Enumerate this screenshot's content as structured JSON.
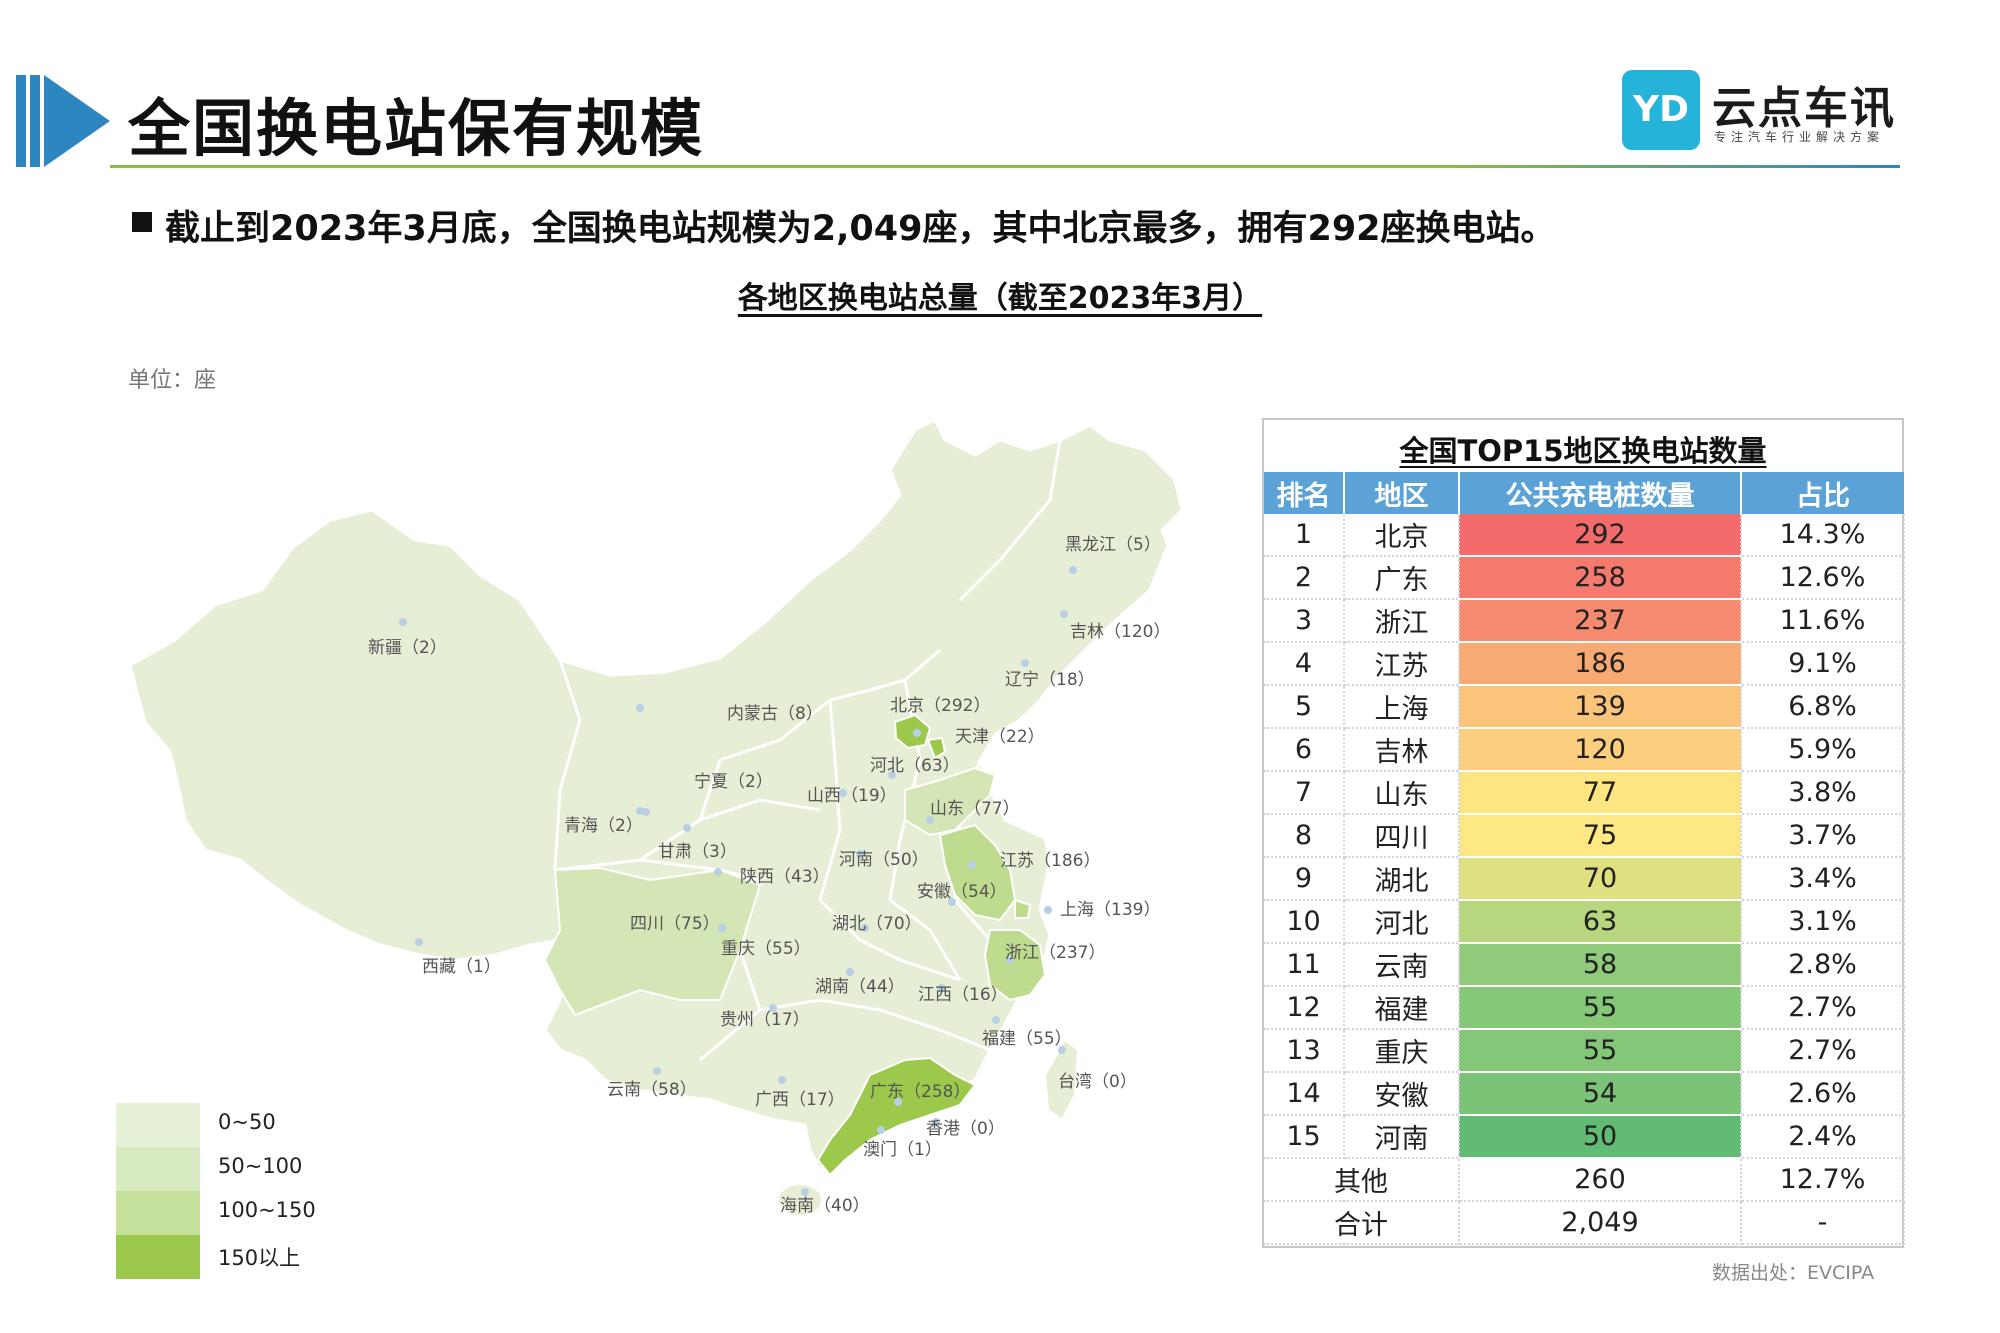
{
  "header": {
    "title": "全国换电站保有规模",
    "brand_logo_text": "YD",
    "brand_name": "云点车讯",
    "brand_slogan": "专注汽车行业解决方案"
  },
  "subtitle": "截止到2023年3月底，全国换电站规模为2,049座，其中北京最多，拥有292座换电站。",
  "chart_title": "各地区换电站总量（截至2023年3月）",
  "unit_label": "单位：座",
  "map": {
    "regions": [
      {
        "name": "黑龙江",
        "value": 5,
        "label": "黑龙江（5）"
      },
      {
        "name": "吉林",
        "value": 120,
        "label": "吉林（120）"
      },
      {
        "name": "辽宁",
        "value": 18,
        "label": "辽宁（18）"
      },
      {
        "name": "新疆",
        "value": 2,
        "label": "新疆（2）"
      },
      {
        "name": "内蒙古",
        "value": 8,
        "label": "内蒙古（8）"
      },
      {
        "name": "北京",
        "value": 292,
        "label": "北京（292）"
      },
      {
        "name": "天津",
        "value": 22,
        "label": "天津（22）"
      },
      {
        "name": "河北",
        "value": 63,
        "label": "河北（63）"
      },
      {
        "name": "宁夏",
        "value": 2,
        "label": "宁夏（2）"
      },
      {
        "name": "山西",
        "value": 19,
        "label": "山西（19）"
      },
      {
        "name": "山东",
        "value": 77,
        "label": "山东（77）"
      },
      {
        "name": "青海",
        "value": 2,
        "label": "青海（2）"
      },
      {
        "name": "甘肃",
        "value": 3,
        "label": "甘肃（3）"
      },
      {
        "name": "河南",
        "value": 50,
        "label": "河南（50）"
      },
      {
        "name": "江苏",
        "value": 186,
        "label": "江苏（186）"
      },
      {
        "name": "陕西",
        "value": 43,
        "label": "陕西（43）"
      },
      {
        "name": "安徽",
        "value": 54,
        "label": "安徽（54）"
      },
      {
        "name": "上海",
        "value": 139,
        "label": "上海（139）"
      },
      {
        "name": "四川",
        "value": 75,
        "label": "四川（75）"
      },
      {
        "name": "湖北",
        "value": 70,
        "label": "湖北（70）"
      },
      {
        "name": "西藏",
        "value": 1,
        "label": "西藏（1）"
      },
      {
        "name": "重庆",
        "value": 55,
        "label": "重庆（55）"
      },
      {
        "name": "浙江",
        "value": 237,
        "label": "浙江（237）"
      },
      {
        "name": "湖南",
        "value": 44,
        "label": "湖南（44）"
      },
      {
        "name": "江西",
        "value": 16,
        "label": "江西（16）"
      },
      {
        "name": "贵州",
        "value": 17,
        "label": "贵州（17）"
      },
      {
        "name": "福建",
        "value": 55,
        "label": "福建（55）"
      },
      {
        "name": "台湾",
        "value": 0,
        "label": "台湾（0）"
      },
      {
        "name": "云南",
        "value": 58,
        "label": "云南（58）"
      },
      {
        "name": "广西",
        "value": 17,
        "label": "广西（17）"
      },
      {
        "name": "广东",
        "value": 258,
        "label": "广东（258）"
      },
      {
        "name": "香港",
        "value": 0,
        "label": "香港（0）"
      },
      {
        "name": "澳门",
        "value": 1,
        "label": "澳门（1）"
      },
      {
        "name": "海南",
        "value": 40,
        "label": "海南（40）"
      }
    ],
    "colors": {
      "land": "#e7eed6",
      "border": "#ffffff",
      "tier_50_100": "#d4e6b5",
      "tier_100_150": "#bfdc8e",
      "tier_150_plus": "#9cc94c"
    }
  },
  "legend": [
    {
      "label": "0~50",
      "color": "#e7f1d7"
    },
    {
      "label": "50~100",
      "color": "#d8eac0"
    },
    {
      "label": "100~150",
      "color": "#c4e09a"
    },
    {
      "label": "150以上",
      "color": "#9cc94c"
    }
  ],
  "table": {
    "title": "全国TOP15地区换电站数量",
    "headers": [
      "排名",
      "地区",
      "公共充电桩数量",
      "占比"
    ],
    "rows": [
      {
        "rank": "1",
        "region": "北京",
        "count": "292",
        "share": "14.3%",
        "color": "#f36b6b"
      },
      {
        "rank": "2",
        "region": "广东",
        "count": "258",
        "share": "12.6%",
        "color": "#f47a6d"
      },
      {
        "rank": "3",
        "region": "浙江",
        "count": "237",
        "share": "11.6%",
        "color": "#f68b6f"
      },
      {
        "rank": "4",
        "region": "江苏",
        "count": "186",
        "share": "9.1%",
        "color": "#f8aa74"
      },
      {
        "rank": "5",
        "region": "上海",
        "count": "139",
        "share": "6.8%",
        "color": "#fac57b"
      },
      {
        "rank": "6",
        "region": "吉林",
        "count": "120",
        "share": "5.9%",
        "color": "#fbcf7d"
      },
      {
        "rank": "7",
        "region": "山东",
        "count": "77",
        "share": "3.8%",
        "color": "#fde682"
      },
      {
        "rank": "8",
        "region": "四川",
        "count": "75",
        "share": "3.7%",
        "color": "#fde883"
      },
      {
        "rank": "9",
        "region": "湖北",
        "count": "70",
        "share": "3.4%",
        "color": "#dfe181"
      },
      {
        "rank": "10",
        "region": "河北",
        "count": "63",
        "share": "3.1%",
        "color": "#b7d67d"
      },
      {
        "rank": "11",
        "region": "云南",
        "count": "58",
        "share": "2.8%",
        "color": "#8fcb7a"
      },
      {
        "rank": "12",
        "region": "福建",
        "count": "55",
        "share": "2.7%",
        "color": "#85c878"
      },
      {
        "rank": "13",
        "region": "重庆",
        "count": "55",
        "share": "2.7%",
        "color": "#84c778"
      },
      {
        "rank": "14",
        "region": "安徽",
        "count": "54",
        "share": "2.6%",
        "color": "#7bc477"
      },
      {
        "rank": "15",
        "region": "河南",
        "count": "50",
        "share": "2.4%",
        "color": "#62bb74"
      }
    ],
    "other": {
      "label": "其他",
      "count": "260",
      "share": "12.7%"
    },
    "total": {
      "label": "合计",
      "count": "2,049",
      "share": "-"
    }
  },
  "source": "数据出处：EVCIPA"
}
